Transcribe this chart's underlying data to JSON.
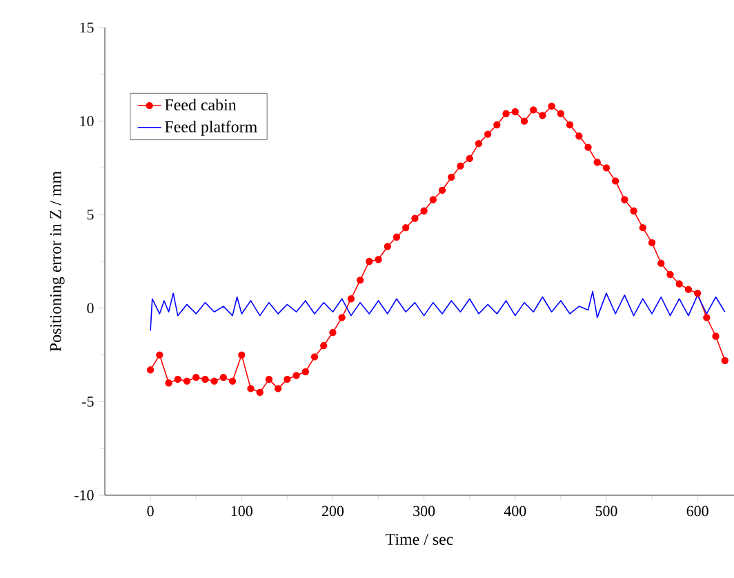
{
  "chart_data": {
    "type": "line",
    "xlabel": "Time / sec",
    "ylabel": "Positioning error in Z / mm",
    "xlim": [
      -50,
      640
    ],
    "ylim": [
      -10,
      15
    ],
    "xticks": [
      0,
      100,
      200,
      300,
      400,
      500,
      600
    ],
    "yticks": [
      -10,
      -5,
      0,
      5,
      10,
      15
    ],
    "legend": "top left",
    "grid": false,
    "series": [
      {
        "name": "Feed cabin",
        "color": "#ff0000",
        "marker": "circle",
        "x": [
          0,
          10,
          20,
          30,
          40,
          50,
          60,
          70,
          80,
          90,
          100,
          110,
          120,
          130,
          140,
          150,
          160,
          170,
          180,
          190,
          200,
          210,
          220,
          230,
          240,
          250,
          260,
          270,
          280,
          290,
          300,
          310,
          320,
          330,
          340,
          350,
          360,
          370,
          380,
          390,
          400,
          410,
          420,
          430,
          440,
          450,
          460,
          470,
          480,
          490,
          500,
          510,
          520,
          530,
          540,
          550,
          560,
          570,
          580,
          590,
          600,
          610,
          620,
          630
        ],
        "values": [
          -3.3,
          -2.5,
          -4.0,
          -3.8,
          -3.9,
          -3.7,
          -3.8,
          -3.9,
          -3.7,
          -3.9,
          -2.5,
          -4.3,
          -4.5,
          -3.8,
          -4.3,
          -3.8,
          -3.6,
          -3.4,
          -2.6,
          -2.0,
          -1.3,
          -0.5,
          0.5,
          1.5,
          2.5,
          2.6,
          3.3,
          3.8,
          4.3,
          4.8,
          5.2,
          5.8,
          6.3,
          7.0,
          7.6,
          8.0,
          8.8,
          9.3,
          9.8,
          10.4,
          10.5,
          10.0,
          10.6,
          10.3,
          10.8,
          10.4,
          9.8,
          9.2,
          8.6,
          7.8,
          7.5,
          6.8,
          5.8,
          5.2,
          4.3,
          3.5,
          2.4,
          1.8,
          1.3,
          1.0,
          0.8,
          -0.5,
          -1.5,
          -2.8
        ]
      },
      {
        "name": "Feed platform",
        "color": "#0000ff",
        "marker": "none",
        "x": [
          0,
          2,
          5,
          10,
          15,
          20,
          25,
          30,
          40,
          50,
          60,
          70,
          80,
          90,
          95,
          100,
          110,
          120,
          130,
          140,
          150,
          160,
          170,
          180,
          190,
          200,
          210,
          220,
          230,
          240,
          250,
          260,
          270,
          280,
          290,
          300,
          310,
          320,
          330,
          340,
          350,
          360,
          370,
          380,
          390,
          400,
          410,
          420,
          430,
          440,
          450,
          460,
          470,
          480,
          485,
          490,
          500,
          510,
          520,
          530,
          540,
          550,
          560,
          570,
          580,
          590,
          600,
          610,
          620,
          630
        ],
        "values": [
          -1.2,
          0.5,
          0.2,
          -0.3,
          0.4,
          -0.2,
          0.8,
          -0.4,
          0.2,
          -0.3,
          0.3,
          -0.2,
          0.1,
          -0.4,
          0.6,
          -0.3,
          0.4,
          -0.4,
          0.3,
          -0.3,
          0.2,
          -0.2,
          0.4,
          -0.3,
          0.3,
          -0.2,
          0.5,
          -0.4,
          0.3,
          -0.3,
          0.4,
          -0.3,
          0.5,
          -0.2,
          0.3,
          -0.4,
          0.3,
          -0.3,
          0.4,
          -0.2,
          0.5,
          -0.3,
          0.2,
          -0.3,
          0.4,
          -0.4,
          0.3,
          -0.2,
          0.6,
          -0.2,
          0.4,
          -0.3,
          0.1,
          -0.1,
          0.9,
          -0.5,
          0.8,
          -0.3,
          0.7,
          -0.4,
          0.5,
          -0.3,
          0.6,
          -0.4,
          0.5,
          -0.4,
          0.7,
          -0.3,
          0.6,
          -0.2
        ]
      }
    ]
  }
}
